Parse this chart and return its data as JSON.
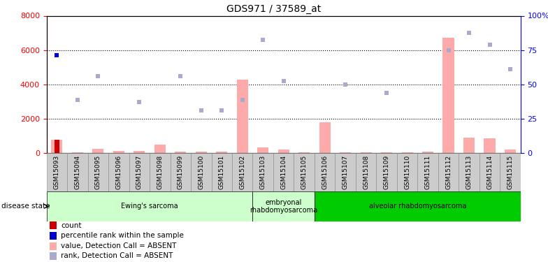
{
  "title": "GDS971 / 37589_at",
  "samples": [
    "GSM15093",
    "GSM15094",
    "GSM15095",
    "GSM15096",
    "GSM15097",
    "GSM15098",
    "GSM15099",
    "GSM15100",
    "GSM15101",
    "GSM15102",
    "GSM15103",
    "GSM15104",
    "GSM15105",
    "GSM15106",
    "GSM15107",
    "GSM15108",
    "GSM15109",
    "GSM15110",
    "GSM15111",
    "GSM15112",
    "GSM15113",
    "GSM15114",
    "GSM15115"
  ],
  "value_bars": [
    800,
    60,
    250,
    120,
    130,
    500,
    80,
    80,
    90,
    4300,
    350,
    200,
    60,
    1800,
    60,
    60,
    60,
    60,
    80,
    6700,
    900,
    850,
    220
  ],
  "rank_dots": [
    null,
    3100,
    4500,
    null,
    3000,
    null,
    4500,
    2500,
    2500,
    3100,
    6600,
    4200,
    null,
    null,
    4000,
    null,
    3500,
    null,
    null,
    6000,
    7000,
    6300,
    4900
  ],
  "count_bar_idx": 0,
  "count_bar_val": 800,
  "percentile_dot_idx": 0,
  "percentile_dot_val": 5700,
  "count_bar_color": "#cc0000",
  "value_bar_color": "#ffaaaa",
  "rank_dot_color": "#aaaacc",
  "percentile_dot_color": "#0000cc",
  "left_ylim": [
    0,
    8000
  ],
  "right_ylim": [
    0,
    100
  ],
  "left_yticks": [
    0,
    2000,
    4000,
    6000,
    8000
  ],
  "right_yticks": [
    0,
    25,
    50,
    75,
    100
  ],
  "right_yticklabels": [
    "0",
    "25",
    "50",
    "75",
    "100%"
  ],
  "grid_lines": [
    2000,
    4000,
    6000
  ],
  "disease_groups": [
    {
      "label": "Ewing's sarcoma",
      "start": 0,
      "end": 10,
      "color": "#ccffcc"
    },
    {
      "label": "embryonal\nrhabdomyosarcoma",
      "start": 10,
      "end": 13,
      "color": "#ccffcc"
    },
    {
      "label": "alveolar rhabdomyosarcoma",
      "start": 13,
      "end": 23,
      "color": "#00cc00"
    }
  ],
  "disease_label": "disease state",
  "legend_items": [
    {
      "label": "count",
      "color": "#cc0000"
    },
    {
      "label": "percentile rank within the sample",
      "color": "#0000cc"
    },
    {
      "label": "value, Detection Call = ABSENT",
      "color": "#ffaaaa"
    },
    {
      "label": "rank, Detection Call = ABSENT",
      "color": "#aaaacc"
    }
  ],
  "fig_width": 7.84,
  "fig_height": 3.75,
  "dpi": 100
}
